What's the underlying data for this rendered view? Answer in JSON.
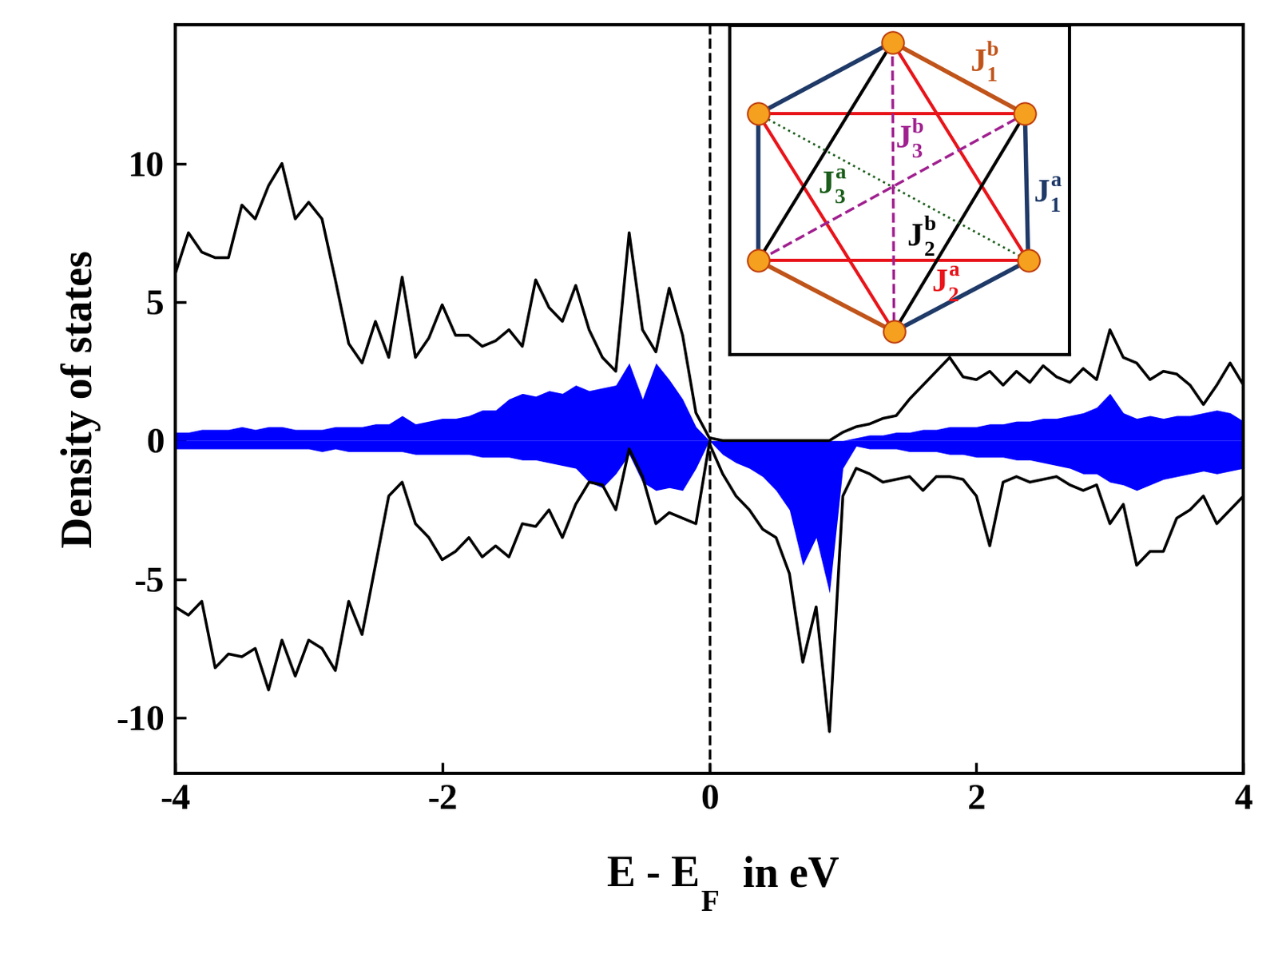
{
  "chart_data": {
    "type": "line",
    "ylabel": "Density of states",
    "xlabel": {
      "text": "E - E",
      "sub": "F",
      "suffix": "  in eV"
    },
    "xlim": [
      -4,
      4
    ],
    "xticks": [
      -4,
      -2,
      0,
      2,
      4
    ],
    "ylim": [
      -12,
      15
    ],
    "yticks": [
      -10,
      -5,
      0,
      5,
      10
    ],
    "x": [
      -4.0,
      -3.9,
      -3.8,
      -3.7,
      -3.6,
      -3.5,
      -3.4,
      -3.3,
      -3.2,
      -3.1,
      -3.0,
      -2.9,
      -2.8,
      -2.7,
      -2.6,
      -2.5,
      -2.4,
      -2.3,
      -2.2,
      -2.1,
      -2.0,
      -1.9,
      -1.8,
      -1.7,
      -1.6,
      -1.5,
      -1.4,
      -1.3,
      -1.2,
      -1.1,
      -1.0,
      -0.9,
      -0.8,
      -0.7,
      -0.6,
      -0.5,
      -0.4,
      -0.3,
      -0.2,
      -0.1,
      0.0,
      0.1,
      0.2,
      0.3,
      0.4,
      0.5,
      0.6,
      0.7,
      0.8,
      0.9,
      1.0,
      1.1,
      1.2,
      1.3,
      1.4,
      1.5,
      1.6,
      1.7,
      1.8,
      1.9,
      2.0,
      2.1,
      2.2,
      2.3,
      2.4,
      2.5,
      2.6,
      2.7,
      2.8,
      2.9,
      3.0,
      3.1,
      3.2,
      3.3,
      3.4,
      3.5,
      3.6,
      3.7,
      3.8,
      3.9,
      4.0
    ],
    "series": [
      {
        "type": "area",
        "color": "#0000ff",
        "values": [
          0.3,
          0.3,
          0.4,
          0.4,
          0.4,
          0.5,
          0.4,
          0.5,
          0.5,
          0.4,
          0.4,
          0.4,
          0.5,
          0.5,
          0.5,
          0.6,
          0.6,
          0.9,
          0.6,
          0.7,
          0.8,
          0.8,
          0.9,
          1.1,
          1.1,
          1.5,
          1.7,
          1.6,
          1.8,
          1.7,
          2.0,
          1.8,
          1.9,
          2.0,
          2.8,
          1.5,
          2.8,
          2.2,
          1.5,
          0.5,
          0.0,
          0.0,
          0.0,
          0.0,
          0.0,
          0.0,
          0.0,
          0.0,
          0.0,
          0.0,
          0.0,
          0.1,
          0.2,
          0.2,
          0.3,
          0.3,
          0.4,
          0.4,
          0.5,
          0.5,
          0.5,
          0.6,
          0.6,
          0.7,
          0.7,
          0.8,
          0.8,
          0.9,
          1.0,
          1.2,
          1.7,
          1.0,
          0.8,
          0.9,
          0.8,
          0.9,
          0.9,
          1.0,
          1.1,
          1.0,
          0.7
        ]
      },
      {
        "type": "area",
        "color": "#0000ff",
        "values": [
          -0.3,
          -0.3,
          -0.3,
          -0.3,
          -0.3,
          -0.3,
          -0.3,
          -0.3,
          -0.3,
          -0.3,
          -0.3,
          -0.4,
          -0.3,
          -0.4,
          -0.4,
          -0.4,
          -0.4,
          -0.4,
          -0.5,
          -0.5,
          -0.5,
          -0.5,
          -0.5,
          -0.6,
          -0.6,
          -0.6,
          -0.7,
          -0.7,
          -0.8,
          -0.9,
          -1.0,
          -1.5,
          -1.7,
          -1.2,
          -0.5,
          -1.5,
          -1.8,
          -1.7,
          -1.8,
          -1.0,
          0.0,
          -0.5,
          -0.8,
          -1.0,
          -1.3,
          -1.8,
          -2.5,
          -4.5,
          -3.5,
          -5.5,
          -1.0,
          -0.2,
          -0.3,
          -0.3,
          -0.3,
          -0.4,
          -0.4,
          -0.4,
          -0.5,
          -0.5,
          -0.6,
          -0.6,
          -0.6,
          -0.7,
          -0.7,
          -0.8,
          -0.9,
          -1.0,
          -1.2,
          -1.2,
          -1.5,
          -1.6,
          -1.8,
          -1.6,
          -1.4,
          -1.3,
          -1.2,
          -1.1,
          -1.2,
          -1.1,
          -1.0
        ]
      },
      {
        "type": "line",
        "color": "#000000",
        "values": [
          6.0,
          7.5,
          6.8,
          6.6,
          6.6,
          8.5,
          8.0,
          9.2,
          10.0,
          8.0,
          8.6,
          8.0,
          5.8,
          3.5,
          2.8,
          4.3,
          3.0,
          5.9,
          3.0,
          3.7,
          4.9,
          3.8,
          3.8,
          3.4,
          3.6,
          4.0,
          3.4,
          5.8,
          4.8,
          4.3,
          5.6,
          4.0,
          3.0,
          2.5,
          7.5,
          4.0,
          3.2,
          5.5,
          3.8,
          1.0,
          0.1,
          0.0,
          0.0,
          0.0,
          0.0,
          0.0,
          0.0,
          0.0,
          0.0,
          0.0,
          0.3,
          0.5,
          0.6,
          0.8,
          0.9,
          1.5,
          2.0,
          2.5,
          3.0,
          2.3,
          2.2,
          2.5,
          2.0,
          2.5,
          2.1,
          2.7,
          2.3,
          2.1,
          2.6,
          2.2,
          4.0,
          3.0,
          2.8,
          2.2,
          2.5,
          2.4,
          2.0,
          1.3,
          2.0,
          2.8,
          2.0
        ]
      },
      {
        "type": "line",
        "color": "#000000",
        "values": [
          -6.0,
          -6.3,
          -5.8,
          -8.2,
          -7.7,
          -7.8,
          -7.5,
          -9.0,
          -7.2,
          -8.5,
          -7.2,
          -7.5,
          -8.3,
          -5.8,
          -7.0,
          -4.5,
          -2.0,
          -1.5,
          -3.0,
          -3.5,
          -4.3,
          -4.0,
          -3.5,
          -4.2,
          -3.8,
          -4.2,
          -3.0,
          -3.1,
          -2.5,
          -3.5,
          -2.3,
          -1.5,
          -1.6,
          -2.5,
          -0.3,
          -1.3,
          -3.0,
          -2.6,
          -2.8,
          -3.0,
          -0.1,
          -1.2,
          -2.0,
          -2.5,
          -3.2,
          -3.5,
          -4.8,
          -8.0,
          -6.0,
          -10.5,
          -2.0,
          -1.0,
          -1.2,
          -1.5,
          -1.4,
          -1.3,
          -1.8,
          -1.3,
          -1.3,
          -1.4,
          -2.0,
          -3.8,
          -1.5,
          -1.3,
          -1.5,
          -1.4,
          -1.3,
          -1.6,
          -1.8,
          -1.6,
          -3.0,
          -2.3,
          -4.5,
          -4.0,
          -4.0,
          -2.8,
          -2.5,
          -2.0,
          -3.0,
          -2.5,
          -2.0
        ]
      }
    ],
    "vlines": [
      {
        "x": 0,
        "line_style": "dashed",
        "color": "#000000"
      }
    ],
    "inset": {
      "labels": [
        {
          "base": "J",
          "sub": "1",
          "sup": "b",
          "color": "#c0541a"
        },
        {
          "base": "J",
          "sub": "1",
          "sup": "a",
          "color": "#1f3a68"
        },
        {
          "base": "J",
          "sub": "2",
          "sup": "a",
          "color": "#e8141a"
        },
        {
          "base": "J",
          "sub": "2",
          "sup": "b",
          "color": "#000000"
        },
        {
          "base": "J",
          "sub": "3",
          "sup": "a",
          "color": "#1a5e1a"
        },
        {
          "base": "J",
          "sub": "3",
          "sup": "b",
          "color": "#a0208f"
        }
      ]
    }
  }
}
